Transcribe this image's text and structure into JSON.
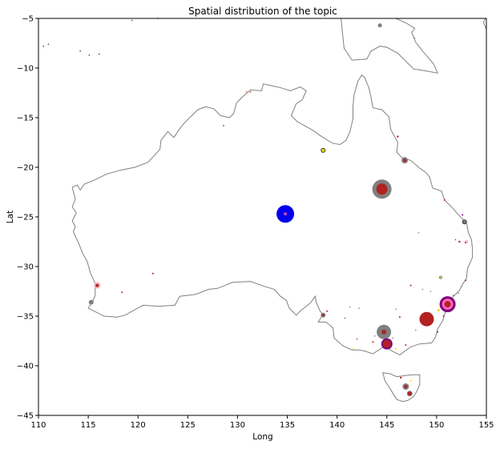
{
  "chart_data": {
    "type": "scatter",
    "title": "Spatial  distribution of the topic",
    "xlabel": "Long",
    "ylabel": "Lat",
    "xlim": [
      110,
      155
    ],
    "ylim": [
      -45,
      -5
    ],
    "xticks": [
      "110",
      "115",
      "120",
      "125",
      "130",
      "135",
      "140",
      "145",
      "150",
      "155"
    ],
    "yticks": [
      "−5",
      "−10",
      "−15",
      "−20",
      "−25",
      "−30",
      "−35",
      "−40",
      "−45"
    ],
    "grid": false,
    "legend": "none",
    "map_outline": {
      "color": "#808080",
      "mainland": [
        [
          113.4,
          -22.0
        ],
        [
          113.9,
          -21.8
        ],
        [
          114.2,
          -22.3
        ],
        [
          114.6,
          -21.7
        ],
        [
          115.6,
          -21.3
        ],
        [
          116.8,
          -20.7
        ],
        [
          118.2,
          -20.3
        ],
        [
          119.7,
          -20.0
        ],
        [
          121.0,
          -19.5
        ],
        [
          122.2,
          -18.2
        ],
        [
          122.3,
          -17.3
        ],
        [
          123.0,
          -16.4
        ],
        [
          123.6,
          -17.0
        ],
        [
          124.2,
          -16.1
        ],
        [
          124.6,
          -15.6
        ],
        [
          125.2,
          -15.0
        ],
        [
          126.0,
          -14.2
        ],
        [
          126.8,
          -13.9
        ],
        [
          127.6,
          -14.1
        ],
        [
          128.3,
          -14.8
        ],
        [
          129.2,
          -15.0
        ],
        [
          129.6,
          -14.6
        ],
        [
          129.9,
          -13.5
        ],
        [
          130.5,
          -12.9
        ],
        [
          131.3,
          -12.2
        ],
        [
          132.4,
          -12.3
        ],
        [
          132.6,
          -11.6
        ],
        [
          133.5,
          -11.8
        ],
        [
          134.4,
          -12.0
        ],
        [
          135.3,
          -12.3
        ],
        [
          136.3,
          -11.9
        ],
        [
          136.9,
          -12.3
        ],
        [
          136.5,
          -13.2
        ],
        [
          135.9,
          -13.6
        ],
        [
          135.4,
          -14.8
        ],
        [
          136.0,
          -15.4
        ],
        [
          136.9,
          -15.9
        ],
        [
          137.6,
          -16.3
        ],
        [
          138.3,
          -16.8
        ],
        [
          139.1,
          -17.3
        ],
        [
          139.6,
          -17.6
        ],
        [
          140.3,
          -17.7
        ],
        [
          140.9,
          -17.3
        ],
        [
          141.3,
          -16.4
        ],
        [
          141.6,
          -15.1
        ],
        [
          141.6,
          -13.9
        ],
        [
          141.7,
          -12.7
        ],
        [
          142.1,
          -11.3
        ],
        [
          142.5,
          -10.7
        ],
        [
          142.8,
          -11.0
        ],
        [
          143.2,
          -12.0
        ],
        [
          143.4,
          -12.9
        ],
        [
          143.6,
          -14.0
        ],
        [
          144.5,
          -14.2
        ],
        [
          145.2,
          -14.9
        ],
        [
          145.4,
          -16.2
        ],
        [
          146.1,
          -17.5
        ],
        [
          146.0,
          -18.5
        ],
        [
          146.6,
          -19.1
        ],
        [
          147.4,
          -19.3
        ],
        [
          148.3,
          -20.1
        ],
        [
          148.9,
          -20.5
        ],
        [
          149.3,
          -21.0
        ],
        [
          149.6,
          -22.1
        ],
        [
          150.5,
          -22.4
        ],
        [
          150.8,
          -23.3
        ],
        [
          151.5,
          -24.0
        ],
        [
          152.3,
          -24.9
        ],
        [
          153.0,
          -25.6
        ],
        [
          153.2,
          -26.6
        ],
        [
          153.5,
          -27.3
        ],
        [
          153.6,
          -28.2
        ],
        [
          153.6,
          -29.1
        ],
        [
          153.1,
          -30.2
        ],
        [
          153.0,
          -31.2
        ],
        [
          152.6,
          -31.8
        ],
        [
          152.3,
          -32.4
        ],
        [
          151.6,
          -33.1
        ],
        [
          151.2,
          -33.9
        ],
        [
          150.9,
          -34.5
        ],
        [
          150.6,
          -35.5
        ],
        [
          150.1,
          -36.3
        ],
        [
          149.9,
          -37.1
        ],
        [
          149.5,
          -37.7
        ],
        [
          148.3,
          -37.8
        ],
        [
          147.4,
          -38.1
        ],
        [
          146.3,
          -38.9
        ],
        [
          145.5,
          -38.5
        ],
        [
          144.9,
          -38.1
        ],
        [
          144.5,
          -38.2
        ],
        [
          143.6,
          -38.8
        ],
        [
          142.7,
          -38.5
        ],
        [
          142.2,
          -38.4
        ],
        [
          141.5,
          -38.4
        ],
        [
          140.6,
          -38.0
        ],
        [
          139.7,
          -37.2
        ],
        [
          139.6,
          -36.2
        ],
        [
          138.9,
          -35.6
        ],
        [
          138.1,
          -35.6
        ],
        [
          138.6,
          -34.8
        ],
        [
          138.3,
          -34.5
        ],
        [
          137.9,
          -33.6
        ],
        [
          137.8,
          -33.0
        ],
        [
          137.3,
          -33.7
        ],
        [
          136.9,
          -34.0
        ],
        [
          136.4,
          -34.4
        ],
        [
          135.9,
          -34.9
        ],
        [
          135.2,
          -34.2
        ],
        [
          134.9,
          -33.4
        ],
        [
          134.3,
          -33.0
        ],
        [
          133.7,
          -32.3
        ],
        [
          132.7,
          -32.0
        ],
        [
          131.3,
          -31.5
        ],
        [
          129.5,
          -31.6
        ],
        [
          128.0,
          -32.2
        ],
        [
          127.1,
          -32.3
        ],
        [
          125.8,
          -32.8
        ],
        [
          124.2,
          -33.0
        ],
        [
          123.7,
          -33.9
        ],
        [
          122.1,
          -34.0
        ],
        [
          120.5,
          -33.9
        ],
        [
          119.6,
          -34.4
        ],
        [
          118.7,
          -34.9
        ],
        [
          117.9,
          -35.1
        ],
        [
          116.6,
          -35.0
        ],
        [
          115.6,
          -34.5
        ],
        [
          115.0,
          -34.2
        ],
        [
          115.4,
          -33.6
        ],
        [
          115.7,
          -32.9
        ],
        [
          115.7,
          -31.7
        ],
        [
          115.2,
          -30.6
        ],
        [
          114.9,
          -29.5
        ],
        [
          114.4,
          -28.6
        ],
        [
          114.1,
          -27.8
        ],
        [
          113.5,
          -26.5
        ],
        [
          113.7,
          -26.0
        ],
        [
          113.4,
          -25.4
        ],
        [
          113.8,
          -24.6
        ],
        [
          113.4,
          -24.0
        ],
        [
          113.7,
          -23.2
        ],
        [
          113.4,
          -22.0
        ]
      ],
      "tasmania": [
        [
          144.6,
          -40.7
        ],
        [
          145.3,
          -40.8
        ],
        [
          146.0,
          -41.1
        ],
        [
          146.8,
          -41.0
        ],
        [
          147.6,
          -40.9
        ],
        [
          148.3,
          -40.9
        ],
        [
          148.3,
          -41.9
        ],
        [
          148.0,
          -42.6
        ],
        [
          147.7,
          -43.1
        ],
        [
          147.1,
          -43.5
        ],
        [
          146.6,
          -43.6
        ],
        [
          146.0,
          -43.4
        ],
        [
          145.5,
          -42.6
        ],
        [
          145.2,
          -42.1
        ],
        [
          144.8,
          -41.5
        ],
        [
          144.6,
          -40.7
        ]
      ],
      "new_guinea": [
        [
          140.4,
          -5.0
        ],
        [
          140.7,
          -8.0
        ],
        [
          141.5,
          -9.2
        ],
        [
          143.0,
          -9.1
        ],
        [
          143.4,
          -8.3
        ],
        [
          144.3,
          -7.8
        ],
        [
          145.0,
          -7.9
        ],
        [
          146.1,
          -8.5
        ],
        [
          147.0,
          -9.4
        ],
        [
          147.7,
          -10.1
        ],
        [
          148.4,
          -10.2
        ],
        [
          150.1,
          -10.5
        ],
        [
          149.7,
          -9.6
        ],
        [
          149.2,
          -9.0
        ],
        [
          148.6,
          -8.3
        ],
        [
          147.9,
          -7.4
        ],
        [
          147.5,
          -6.4
        ],
        [
          147.8,
          -6.0
        ],
        [
          147.0,
          -5.5
        ],
        [
          145.9,
          -5.0
        ]
      ],
      "island_ne": [
        [
          154.9,
          -5.0
        ],
        [
          154.7,
          -5.4
        ],
        [
          155.0,
          -6.1
        ]
      ],
      "dots": [
        [
          110.5,
          -7.8
        ],
        [
          111.0,
          -7.6
        ],
        [
          114.2,
          -8.3
        ],
        [
          115.1,
          -8.7
        ],
        [
          116.1,
          -8.6
        ],
        [
          119.4,
          -5.2
        ],
        [
          122.0,
          -5.0
        ],
        [
          128.6,
          -15.8
        ],
        [
          131.3,
          -12.4
        ]
      ]
    },
    "points": [
      {
        "x": 134.8,
        "y": -24.7,
        "size": 11,
        "color": "#0000ee",
        "edge": null
      },
      {
        "x": 134.8,
        "y": -24.7,
        "size": 2,
        "color": "#c040c0",
        "edge": null
      },
      {
        "x": 144.5,
        "y": -22.2,
        "size": 12,
        "color": "#808080",
        "edge": null
      },
      {
        "x": 144.5,
        "y": -22.2,
        "size": 7,
        "color": "#b22222",
        "edge": null
      },
      {
        "x": 149.0,
        "y": -35.3,
        "size": 9,
        "color": "#b22222",
        "edge": null
      },
      {
        "x": 151.1,
        "y": -33.8,
        "size": 10,
        "color": "#800080",
        "edge": null
      },
      {
        "x": 151.1,
        "y": -33.8,
        "size": 7,
        "color": "#ff69b4",
        "edge": null
      },
      {
        "x": 151.1,
        "y": -33.8,
        "size": 4,
        "color": "#b22222",
        "edge": null
      },
      {
        "x": 144.7,
        "y": -36.6,
        "size": 9,
        "color": "#808080",
        "edge": null
      },
      {
        "x": 144.7,
        "y": -36.6,
        "size": 3,
        "color": "#b22222",
        "edge": null
      },
      {
        "x": 145.0,
        "y": -37.8,
        "size": 7,
        "color": "#800080",
        "edge": null
      },
      {
        "x": 145.0,
        "y": -37.8,
        "size": 5,
        "color": "#b22222",
        "edge": null
      },
      {
        "x": 146.8,
        "y": -19.3,
        "size": 4,
        "color": "#808080",
        "edge": null
      },
      {
        "x": 146.8,
        "y": -19.3,
        "size": 2,
        "color": "#b22222",
        "edge": null
      },
      {
        "x": 138.6,
        "y": -18.3,
        "size": 2.5,
        "color": "#ffd700",
        "edge": "#333333"
      },
      {
        "x": 115.9,
        "y": -31.9,
        "size": 4,
        "color": "#ffb6c1",
        "edge": null
      },
      {
        "x": 115.9,
        "y": -31.9,
        "size": 2,
        "color": "#b22222",
        "edge": null
      },
      {
        "x": 115.3,
        "y": -33.6,
        "size": 3,
        "color": "#808080",
        "edge": null
      },
      {
        "x": 138.6,
        "y": -34.9,
        "size": 3,
        "color": "#808080",
        "edge": null
      },
      {
        "x": 138.6,
        "y": -34.9,
        "size": 1.5,
        "color": "#b22222",
        "edge": null
      },
      {
        "x": 146.9,
        "y": -42.1,
        "size": 4,
        "color": "#808080",
        "edge": null
      },
      {
        "x": 146.9,
        "y": -42.1,
        "size": 2,
        "color": "#b22222",
        "edge": null
      },
      {
        "x": 147.3,
        "y": -42.8,
        "size": 3,
        "color": "#b22222",
        "edge": "#808080"
      },
      {
        "x": 144.3,
        "y": -5.7,
        "size": 2.5,
        "color": "#808080",
        "edge": null
      },
      {
        "x": 152.8,
        "y": -25.5,
        "size": 2.5,
        "color": "#808080",
        "edge": "#333333"
      },
      {
        "x": 153.0,
        "y": -27.5,
        "size": 2,
        "color": "#ffb6c1",
        "edge": null
      },
      {
        "x": 150.4,
        "y": -31.1,
        "size": 1.5,
        "color": "#ffd700",
        "edge": "#808080"
      },
      {
        "x": 150.2,
        "y": -34.4,
        "size": 1.5,
        "color": "#ffd700",
        "edge": null
      },
      {
        "x": 152.3,
        "y": -27.5,
        "size": 1.2,
        "color": "#b22222",
        "edge": null
      },
      {
        "x": 146.4,
        "y": -41.2,
        "size": 1.2,
        "color": "#b22222",
        "edge": null
      },
      {
        "x": 147.4,
        "y": -41.5,
        "size": 1,
        "color": "#ffd700",
        "edge": null
      },
      {
        "x": 146.1,
        "y": -16.9,
        "size": 1.2,
        "color": "#b22222",
        "edge": null
      },
      {
        "x": 150.8,
        "y": -23.3,
        "size": 1,
        "color": "#b22222",
        "edge": null
      },
      {
        "x": 152.6,
        "y": -24.8,
        "size": 1,
        "color": "#800080",
        "edge": null
      },
      {
        "x": 152.9,
        "y": -27.6,
        "size": 1,
        "color": "#b22222",
        "edge": null
      },
      {
        "x": 152.9,
        "y": -31.4,
        "size": 1,
        "color": "#b22222",
        "edge": null
      },
      {
        "x": 150.7,
        "y": -35.0,
        "size": 1,
        "color": "#b22222",
        "edge": null
      },
      {
        "x": 150.1,
        "y": -36.6,
        "size": 1,
        "color": "#b22222",
        "edge": null
      },
      {
        "x": 147.4,
        "y": -31.9,
        "size": 1,
        "color": "#b22222",
        "edge": null
      },
      {
        "x": 146.3,
        "y": -35.1,
        "size": 1,
        "color": "#b22222",
        "edge": null
      },
      {
        "x": 143.6,
        "y": -37.6,
        "size": 1,
        "color": "#b22222",
        "edge": null
      },
      {
        "x": 146.9,
        "y": -37.9,
        "size": 1,
        "color": "#b22222",
        "edge": null
      },
      {
        "x": 145.9,
        "y": -38.3,
        "size": 1,
        "color": "#ffd700",
        "edge": null
      },
      {
        "x": 139.0,
        "y": -34.5,
        "size": 1,
        "color": "#b22222",
        "edge": null
      },
      {
        "x": 121.5,
        "y": -30.7,
        "size": 1,
        "color": "#b22222",
        "edge": null
      },
      {
        "x": 118.4,
        "y": -32.6,
        "size": 1,
        "color": "#b22222",
        "edge": null
      },
      {
        "x": 148.2,
        "y": -26.6,
        "size": 0.8,
        "color": "#808080",
        "edge": null
      },
      {
        "x": 151.9,
        "y": -27.3,
        "size": 0.8,
        "color": "#b22222",
        "edge": null
      },
      {
        "x": 140.8,
        "y": -35.2,
        "size": 0.8,
        "color": "#b22222",
        "edge": null
      },
      {
        "x": 141.3,
        "y": -34.1,
        "size": 0.8,
        "color": "#808080",
        "edge": null
      },
      {
        "x": 142.2,
        "y": -34.2,
        "size": 0.8,
        "color": "#808080",
        "edge": null
      },
      {
        "x": 145.9,
        "y": -34.3,
        "size": 0.8,
        "color": "#808080",
        "edge": null
      },
      {
        "x": 142.0,
        "y": -37.3,
        "size": 0.8,
        "color": "#b22222",
        "edge": null
      },
      {
        "x": 143.8,
        "y": -37.0,
        "size": 0.8,
        "color": "#808080",
        "edge": null
      },
      {
        "x": 141.6,
        "y": -38.3,
        "size": 0.8,
        "color": "#ffd700",
        "edge": null
      },
      {
        "x": 144.3,
        "y": -36.8,
        "size": 0.8,
        "color": "#808080",
        "edge": null
      },
      {
        "x": 148.6,
        "y": -32.3,
        "size": 0.8,
        "color": "#808080",
        "edge": null
      },
      {
        "x": 149.4,
        "y": -32.5,
        "size": 0.8,
        "color": "#808080",
        "edge": null
      },
      {
        "x": 151.7,
        "y": -32.9,
        "size": 0.8,
        "color": "#b22222",
        "edge": null
      },
      {
        "x": 152.5,
        "y": -32.0,
        "size": 0.8,
        "color": "#808080",
        "edge": null
      },
      {
        "x": 147.9,
        "y": -36.4,
        "size": 0.8,
        "color": "#808080",
        "edge": null
      },
      {
        "x": 145.6,
        "y": -37.2,
        "size": 0.8,
        "color": "#808080",
        "edge": null
      },
      {
        "x": 147.8,
        "y": -7.0,
        "size": 0.8,
        "color": "#808080",
        "edge": null
      },
      {
        "x": 130.9,
        "y": -12.4,
        "size": 1.2,
        "color": "#ffa07a",
        "edge": null
      },
      {
        "x": 152.2,
        "y": -32.7,
        "size": 0.8,
        "color": "#808080",
        "edge": null
      }
    ]
  }
}
